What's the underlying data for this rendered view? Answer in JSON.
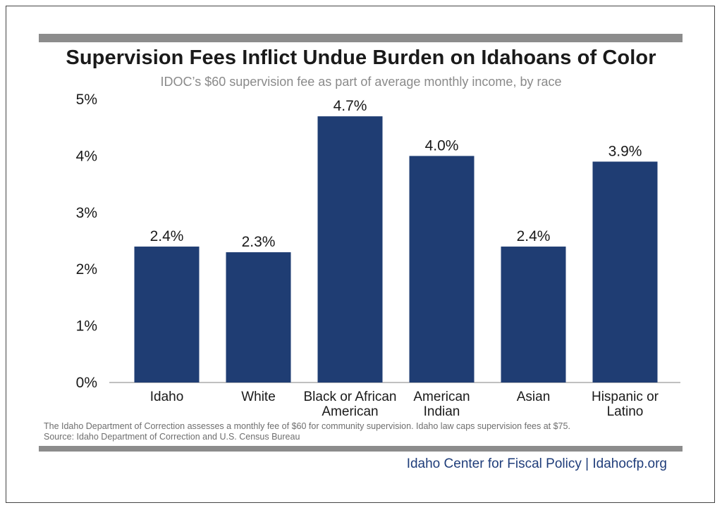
{
  "title": "Supervision Fees Inflict Undue Burden on Idahoans of Color",
  "subtitle": "IDOC’s $60 supervision fee as part of average monthly income, by race",
  "chart_data": {
    "type": "bar",
    "categories": [
      [
        "Idaho"
      ],
      [
        "White"
      ],
      [
        "Black or African",
        "American"
      ],
      [
        "American",
        "Indian"
      ],
      [
        "Asian"
      ],
      [
        "Hispanic or",
        "Latino"
      ]
    ],
    "values": [
      2.4,
      2.3,
      4.7,
      4.0,
      2.4,
      3.9
    ],
    "value_labels": [
      "2.4%",
      "2.3%",
      "4.7%",
      "4.0%",
      "2.4%",
      "3.9%"
    ],
    "yticks": [
      "0%",
      "1%",
      "2%",
      "3%",
      "4%",
      "5%"
    ],
    "ylim": [
      0,
      5
    ],
    "bar_color": "#1f3d73",
    "grid": false
  },
  "footnote": {
    "line1": "The Idaho Department of Correction assesses a monthly fee of $60 for community supervision. Idaho law caps supervision fees at $75.",
    "line2": "Source: Idaho Department of Correction and U.S. Census Bureau"
  },
  "credit": "Idaho Center for Fiscal Policy | Idahocfp.org"
}
